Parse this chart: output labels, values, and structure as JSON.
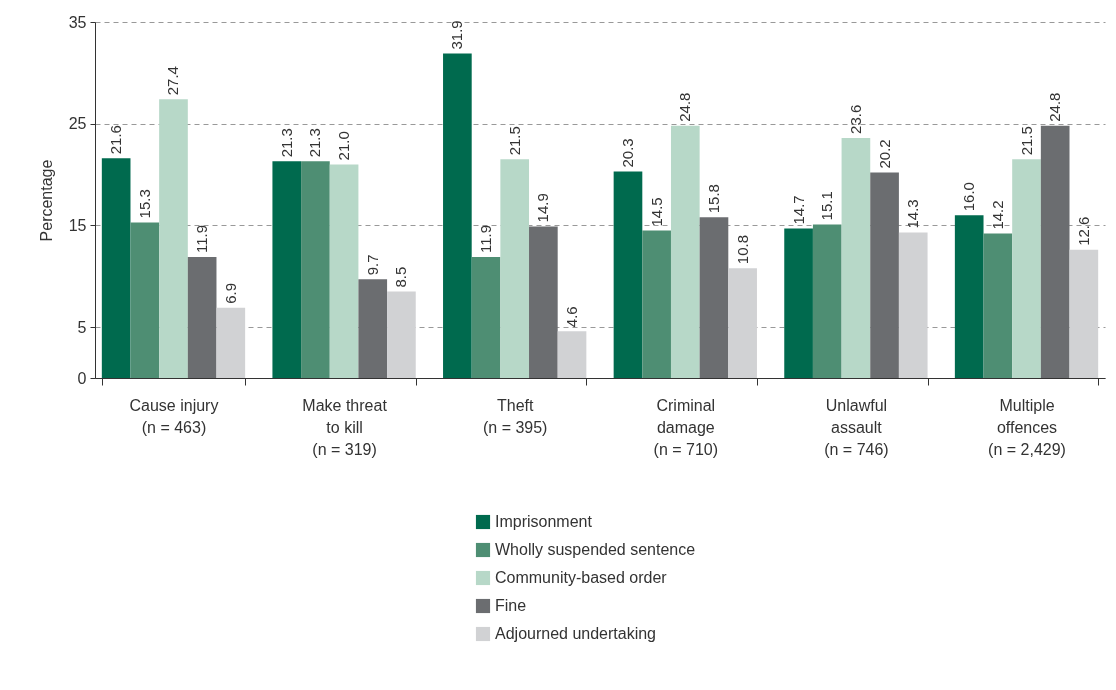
{
  "chart_data": {
    "type": "bar",
    "ylabel": "Percentage",
    "categories": [
      "Cause injury (n = 463)",
      "Make threat to kill (n = 319)",
      "Theft (n = 395)",
      "Criminal damage (n = 710)",
      "Unlawful assault (n = 746)",
      "Multiple offences (n = 2,429)"
    ],
    "series": [
      {
        "name": "Imprisonment",
        "color": "#006a4e",
        "values": [
          21.6,
          21.3,
          31.9,
          20.3,
          14.7,
          16.0
        ],
        "value_labels": [
          "21.6",
          "21.3",
          "31.9",
          "20.3",
          "14.7",
          "16.0"
        ]
      },
      {
        "name": "Wholly suspended sentence",
        "color": "#4e8e73",
        "values": [
          15.3,
          21.3,
          11.9,
          14.5,
          15.1,
          14.2
        ],
        "value_labels": [
          "15.3",
          "21.3",
          "11.9",
          "14.5",
          "15.1",
          "14.2"
        ]
      },
      {
        "name": "Community-based order",
        "color": "#b7d8c8",
        "values": [
          27.4,
          21.0,
          21.5,
          24.8,
          23.6,
          21.5
        ],
        "value_labels": [
          "27.4",
          "21.0",
          "21.5",
          "24.8",
          "23.6",
          "21.5"
        ]
      },
      {
        "name": "Fine",
        "color": "#6b6d70",
        "values": [
          11.9,
          9.7,
          14.9,
          15.8,
          20.2,
          24.8
        ],
        "value_labels": [
          "11.9",
          "9.7",
          "14.9",
          "15.8",
          "20.2",
          "24.8"
        ]
      },
      {
        "name": "Adjourned undertaking",
        "color": "#d1d2d4",
        "values": [
          6.9,
          8.5,
          4.6,
          10.8,
          14.3,
          12.6
        ],
        "value_labels": [
          "6.9",
          "8.5",
          "4.6",
          "10.8",
          "14.3",
          "12.6"
        ]
      }
    ],
    "ylim": [
      0,
      35
    ],
    "yticks": [
      0,
      5,
      15,
      25,
      35
    ],
    "grid": "y",
    "legend": "bottom"
  }
}
